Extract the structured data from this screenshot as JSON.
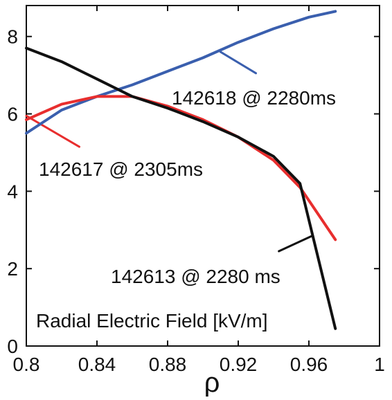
{
  "chart_data": {
    "type": "line",
    "title": "",
    "xlabel": "ρ",
    "ylabel": "",
    "xlim": [
      0.8,
      1.0
    ],
    "ylim": [
      0,
      8.8
    ],
    "x_ticks": [
      0.8,
      0.84,
      0.88,
      0.92,
      0.96,
      1.0
    ],
    "x_tick_labels": [
      "0.8",
      "0.84",
      "0.88",
      "0.92",
      "0.96",
      "1"
    ],
    "y_ticks": [
      0,
      2,
      4,
      6,
      8
    ],
    "y_tick_labels": [
      "0",
      "2",
      "4",
      "6",
      "8"
    ],
    "grid": false,
    "legend": "none",
    "series": [
      {
        "name": "142618 @ 2280ms",
        "color": "#3a5fae",
        "points": [
          [
            0.8,
            5.5
          ],
          [
            0.82,
            6.1
          ],
          [
            0.84,
            6.45
          ],
          [
            0.86,
            6.75
          ],
          [
            0.88,
            7.1
          ],
          [
            0.9,
            7.45
          ],
          [
            0.92,
            7.85
          ],
          [
            0.94,
            8.2
          ],
          [
            0.96,
            8.5
          ],
          [
            0.975,
            8.65
          ]
        ]
      },
      {
        "name": "142617 @ 2305ms",
        "color": "#e82e2e",
        "points": [
          [
            0.8,
            5.85
          ],
          [
            0.82,
            6.25
          ],
          [
            0.84,
            6.45
          ],
          [
            0.86,
            6.45
          ],
          [
            0.88,
            6.2
          ],
          [
            0.9,
            5.85
          ],
          [
            0.92,
            5.4
          ],
          [
            0.94,
            4.8
          ],
          [
            0.955,
            4.1
          ],
          [
            0.975,
            2.75
          ]
        ]
      },
      {
        "name": "142613 @ 2280 ms",
        "color": "#111111",
        "points": [
          [
            0.8,
            7.7
          ],
          [
            0.82,
            7.35
          ],
          [
            0.84,
            6.9
          ],
          [
            0.86,
            6.45
          ],
          [
            0.88,
            6.15
          ],
          [
            0.9,
            5.8
          ],
          [
            0.92,
            5.4
          ],
          [
            0.94,
            4.9
          ],
          [
            0.955,
            4.2
          ],
          [
            0.975,
            0.45
          ]
        ]
      }
    ],
    "annotations": [
      {
        "text": "142618 @ 2280ms",
        "color": "#3a5fae",
        "leader": [
          [
            0.91,
            7.6
          ],
          [
            0.93,
            7.05
          ]
        ]
      },
      {
        "text": "142617 @ 2305ms",
        "color": "#e82e2e",
        "leader": [
          [
            0.8,
            5.95
          ],
          [
            0.83,
            5.15
          ]
        ]
      },
      {
        "text": "142613 @ 2280 ms",
        "color": "#111111",
        "leader": [
          [
            0.943,
            2.45
          ],
          [
            0.962,
            2.85
          ]
        ]
      },
      {
        "text": "Radial Electric Field [kV/m]",
        "color": "#111111",
        "leader": null
      }
    ]
  }
}
